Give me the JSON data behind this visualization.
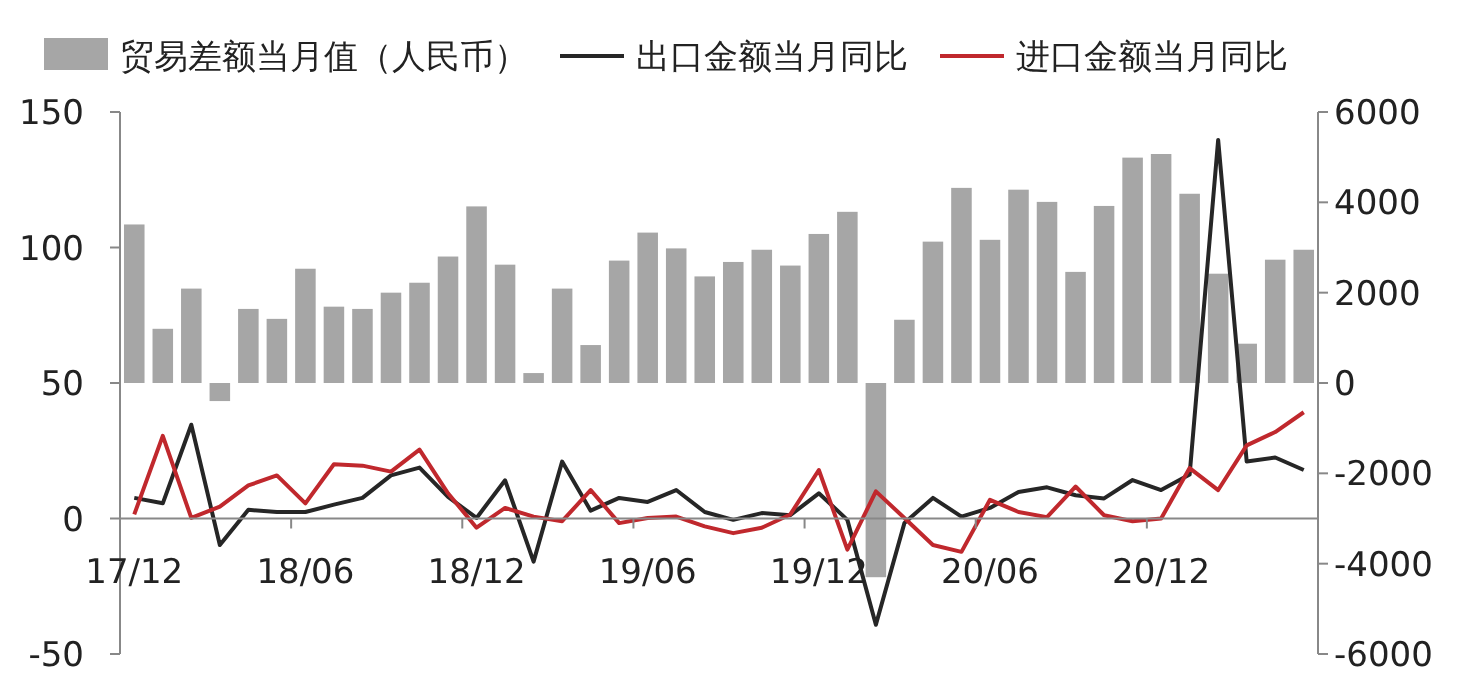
{
  "chart_data": {
    "type": "bar",
    "categories": [
      "17/12",
      null,
      null,
      null,
      null,
      null,
      "18/06",
      null,
      null,
      null,
      null,
      null,
      "18/12",
      null,
      null,
      null,
      null,
      null,
      "19/06",
      null,
      null,
      null,
      null,
      null,
      "19/12",
      null,
      null,
      null,
      null,
      null,
      "20/06",
      null,
      null,
      null,
      null,
      null,
      "20/12",
      null,
      null,
      null,
      null,
      null
    ],
    "series": [
      {
        "name": "贸易差额当月值（人民币）",
        "axis": "y2",
        "color": "#a6a6a6",
        "values": [
          3510,
          1200,
          2090,
          -400,
          1640,
          1420,
          2530,
          1690,
          1640,
          2000,
          2220,
          2800,
          3910,
          2620,
          220,
          2090,
          840,
          2710,
          3330,
          2980,
          2360,
          2680,
          2950,
          2600,
          3300,
          3790,
          -4300,
          1400,
          3130,
          4320,
          3170,
          4280,
          4010,
          2460,
          3920,
          4990,
          5070,
          4190,
          2420,
          870,
          2730,
          2950
        ]
      },
      {
        "name": "出口金额当月同比",
        "type": "line",
        "color": "#262626",
        "values": [
          7.6,
          5.6,
          34.6,
          -9.8,
          3.2,
          2.4,
          2.4,
          5.1,
          7.6,
          15.9,
          18.8,
          8.0,
          0.2,
          14.1,
          -15.9,
          21.0,
          2.9,
          7.6,
          6.1,
          10.5,
          2.4,
          -0.5,
          2.0,
          1.2,
          9.3,
          -0.5,
          -39.2,
          -1.7,
          7.6,
          0.7,
          3.9,
          9.8,
          11.5,
          8.6,
          7.4,
          14.2,
          10.5,
          16.2,
          139.7,
          21.0,
          22.5,
          17.9
        ]
      },
      {
        "name": "进口金额当月同比",
        "type": "line",
        "color": "#c0282d",
        "values": [
          1.5,
          30.5,
          0.2,
          4.4,
          12.2,
          15.9,
          5.6,
          20.0,
          19.5,
          17.3,
          25.4,
          9.3,
          -3.4,
          3.9,
          0.7,
          -1.0,
          10.5,
          -1.7,
          0.2,
          0.7,
          -2.9,
          -5.4,
          -3.4,
          1.5,
          17.9,
          -11.5,
          10.0,
          0.2,
          -9.8,
          -12.3,
          6.9,
          2.4,
          0.5,
          11.8,
          1.2,
          -1.0,
          0,
          18.6,
          10.5,
          27.0,
          31.9,
          39.2
        ]
      }
    ],
    "ylim": [
      -50,
      150
    ],
    "yticks": [
      -50,
      0,
      50,
      100,
      150
    ],
    "y2lim": [
      -6000,
      6000
    ],
    "y2ticks": [
      -6000,
      -4000,
      -2000,
      0,
      2000,
      4000,
      6000
    ],
    "legend": "top"
  }
}
